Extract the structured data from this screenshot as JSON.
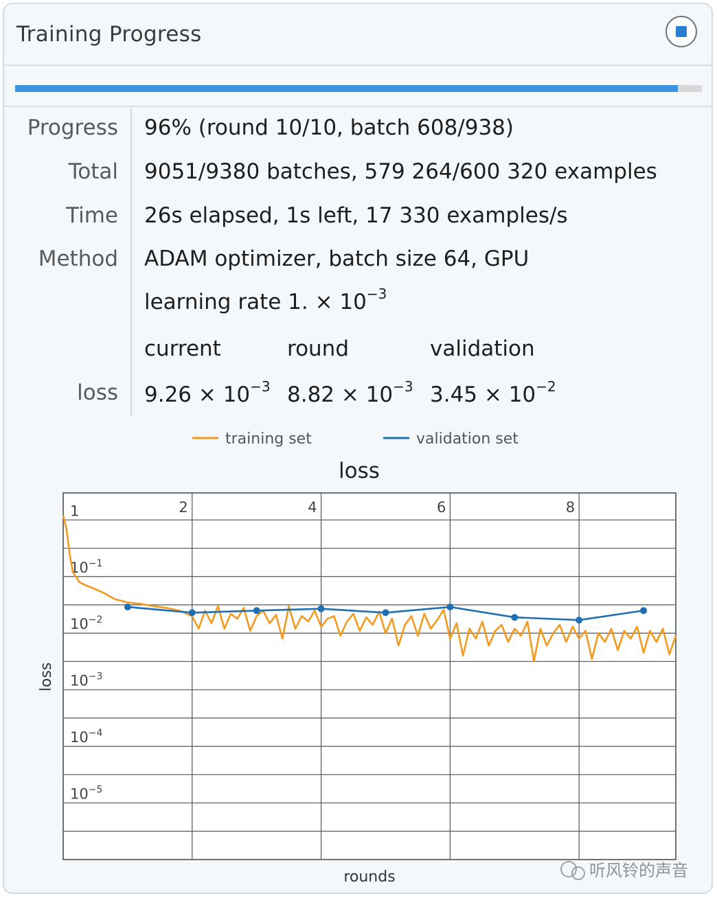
{
  "header": {
    "title": "Training Progress"
  },
  "progress_fraction": 0.965,
  "info": {
    "progress_label": "Progress",
    "progress_value": "96% (round 10/10, batch 608/938)",
    "total_label": "Total",
    "total_value": "9051/9380 batches, 579 264/600 320 examples",
    "time_label": "Time",
    "time_value": "26s elapsed, 1s left, 17 330 examples/s",
    "method_label": "Method",
    "method_value": "ADAM optimizer, batch size 64, GPU",
    "lr_prefix": "learning rate 1. × 10",
    "lr_exp": "−3"
  },
  "loss_table": {
    "row_label": "loss",
    "columns": [
      "current",
      "round",
      "validation"
    ],
    "mantissas": [
      "9.26 × 10",
      "8.82 × 10",
      "3.45 × 10"
    ],
    "exponents": [
      "−3",
      "−3",
      "−2"
    ]
  },
  "colors": {
    "training": "#f39a1e",
    "validation": "#1f6fb2",
    "accent": "#2a7ed2"
  },
  "chart_data": {
    "type": "line",
    "title": "loss",
    "xlabel": "rounds",
    "ylabel": "loss",
    "y_scale": "log",
    "xlim": [
      0,
      9.5
    ],
    "ylim": [
      1e-06,
      3
    ],
    "x_ticks": [
      2,
      4,
      6,
      8
    ],
    "x_tick_labels": [
      "2",
      "4",
      "6",
      "8"
    ],
    "y_ticks": [
      1,
      0.1,
      0.01,
      0.001,
      0.0001,
      1e-05
    ],
    "y_tick_bases": [
      "1",
      "10",
      "10",
      "10",
      "10",
      "10"
    ],
    "y_tick_exps": [
      "",
      "−1",
      "−2",
      "−3",
      "−4",
      "−5"
    ],
    "grid": true,
    "legend_position": "top",
    "series": [
      {
        "name": "training set",
        "x": [
          0.0,
          0.05,
          0.1,
          0.15,
          0.25,
          0.35,
          0.5,
          0.65,
          0.8,
          1.0,
          1.2,
          1.4,
          1.6,
          1.8,
          2.0,
          2.1,
          2.2,
          2.3,
          2.4,
          2.5,
          2.6,
          2.7,
          2.8,
          2.9,
          3.0,
          3.1,
          3.2,
          3.3,
          3.4,
          3.5,
          3.6,
          3.7,
          3.8,
          3.9,
          4.0,
          4.1,
          4.2,
          4.3,
          4.4,
          4.5,
          4.6,
          4.7,
          4.8,
          4.9,
          5.0,
          5.1,
          5.2,
          5.3,
          5.4,
          5.5,
          5.6,
          5.7,
          5.8,
          5.9,
          6.0,
          6.1,
          6.2,
          6.3,
          6.4,
          6.5,
          6.6,
          6.7,
          6.8,
          6.9,
          7.0,
          7.1,
          7.2,
          7.3,
          7.4,
          7.5,
          7.6,
          7.7,
          7.8,
          7.9,
          8.0,
          8.1,
          8.2,
          8.3,
          8.4,
          8.5,
          8.6,
          8.7,
          8.8,
          8.9,
          9.0,
          9.1,
          9.2,
          9.3,
          9.4,
          9.5
        ],
        "y": [
          1.2,
          0.7,
          0.25,
          0.12,
          0.08,
          0.07,
          0.06,
          0.05,
          0.04,
          0.035,
          0.033,
          0.03,
          0.028,
          0.025,
          0.02,
          0.012,
          0.025,
          0.015,
          0.03,
          0.012,
          0.022,
          0.018,
          0.028,
          0.011,
          0.02,
          0.025,
          0.015,
          0.021,
          0.008,
          0.03,
          0.012,
          0.02,
          0.016,
          0.025,
          0.013,
          0.018,
          0.02,
          0.009,
          0.016,
          0.022,
          0.011,
          0.019,
          0.014,
          0.024,
          0.01,
          0.018,
          0.006,
          0.014,
          0.02,
          0.009,
          0.022,
          0.012,
          0.017,
          0.026,
          0.008,
          0.015,
          0.004,
          0.012,
          0.008,
          0.016,
          0.006,
          0.011,
          0.014,
          0.007,
          0.012,
          0.009,
          0.016,
          0.0032,
          0.012,
          0.006,
          0.01,
          0.014,
          0.007,
          0.013,
          0.008,
          0.011,
          0.0035,
          0.01,
          0.007,
          0.012,
          0.005,
          0.011,
          0.008,
          0.013,
          0.0045,
          0.011,
          0.007,
          0.012,
          0.0042,
          0.009
        ]
      },
      {
        "name": "validation set",
        "x": [
          1,
          2,
          3,
          4,
          5,
          6,
          7,
          8,
          9
        ],
        "y": [
          0.029,
          0.023,
          0.025,
          0.027,
          0.023,
          0.029,
          0.019,
          0.017,
          0.025
        ]
      }
    ]
  },
  "watermark": {
    "text": "听风铃的声音"
  }
}
